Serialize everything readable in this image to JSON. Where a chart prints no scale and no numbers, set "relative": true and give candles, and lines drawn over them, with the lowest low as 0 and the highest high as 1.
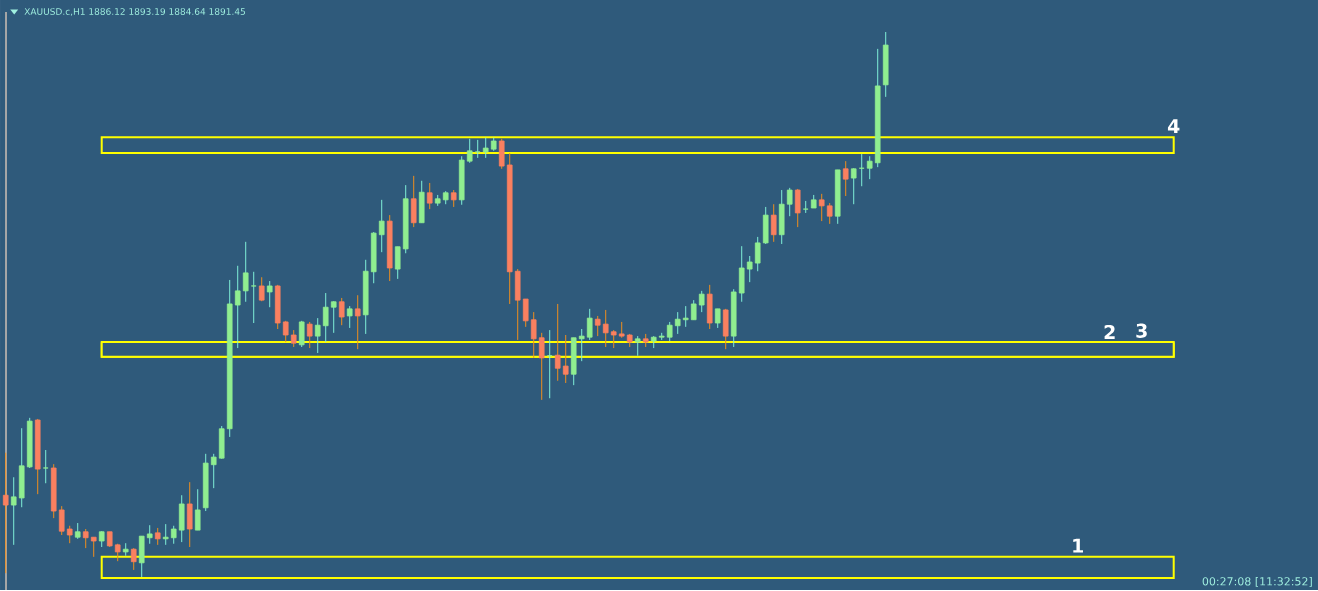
{
  "chart_data": {
    "type": "candlestick",
    "relative": true,
    "title": "XAUUSD.c,H1  1886.12 1893.19 1884.64 1891.45",
    "categories": [
      null,
      null,
      null,
      null,
      null,
      null,
      null,
      null,
      null,
      null,
      null,
      null,
      null,
      null,
      null,
      null,
      null,
      null,
      null,
      null,
      null,
      null,
      null,
      null,
      null,
      null,
      null,
      null,
      null,
      null,
      null,
      null,
      null,
      null,
      null,
      null,
      null,
      null,
      null,
      null,
      null,
      null,
      null,
      null,
      null,
      null,
      null,
      null,
      null,
      null,
      null,
      null,
      null,
      null,
      null,
      null,
      null,
      null,
      null,
      null,
      null,
      null,
      null,
      null,
      null,
      null,
      null,
      null,
      null,
      null,
      null,
      null,
      null,
      null,
      null,
      null,
      null,
      null,
      null,
      null,
      null,
      null,
      null,
      null,
      null,
      null,
      null,
      null,
      null,
      null,
      null,
      null,
      null,
      null,
      null,
      null,
      null,
      null,
      null,
      null,
      null,
      null,
      null,
      null,
      null,
      null,
      null,
      null,
      null,
      null,
      null
    ],
    "ohlc": [
      [
        0.15,
        0.228,
        0.007,
        0.132
      ],
      [
        0.132,
        0.183,
        0.059,
        0.147
      ],
      [
        0.145,
        0.273,
        0.128,
        0.204
      ],
      [
        0.202,
        0.292,
        0.2,
        0.286
      ],
      [
        0.288,
        0.29,
        0.152,
        0.198
      ],
      [
        0.2,
        0.233,
        0.172,
        0.2
      ],
      [
        0.2,
        0.207,
        0.108,
        0.121
      ],
      [
        0.123,
        0.13,
        0.077,
        0.084
      ],
      [
        0.088,
        0.094,
        0.062,
        0.077
      ],
      [
        0.073,
        0.099,
        0.07,
        0.083
      ],
      [
        0.083,
        0.088,
        0.053,
        0.072
      ],
      [
        0.073,
        0.073,
        0.037,
        0.066
      ],
      [
        0.066,
        0.084,
        0.055,
        0.083
      ],
      [
        0.083,
        0.083,
        0.055,
        0.057
      ],
      [
        0.059,
        0.061,
        0.029,
        0.046
      ],
      [
        0.046,
        0.062,
        0.039,
        0.051
      ],
      [
        0.051,
        0.053,
        0.013,
        0.028
      ],
      [
        0.026,
        0.075,
        0,
        0.075
      ],
      [
        0.072,
        0.095,
        0.061,
        0.079
      ],
      [
        0.081,
        0.09,
        0.059,
        0.07
      ],
      [
        0.07,
        0.097,
        0.059,
        0.073
      ],
      [
        0.072,
        0.094,
        0.061,
        0.088
      ],
      [
        0.086,
        0.15,
        0.064,
        0.134
      ],
      [
        0.134,
        0.174,
        0.055,
        0.088
      ],
      [
        0.086,
        0.161,
        0.086,
        0.123
      ],
      [
        0.127,
        0.226,
        0.121,
        0.209
      ],
      [
        0.206,
        0.226,
        0.163,
        0.22
      ],
      [
        0.218,
        0.277,
        0.217,
        0.272
      ],
      [
        0.272,
        0.545,
        0.257,
        0.501
      ],
      [
        0.499,
        0.571,
        0.42,
        0.525
      ],
      [
        0.525,
        0.615,
        0.505,
        0.558
      ],
      [
        0.534,
        0.56,
        0.466,
        0.534
      ],
      [
        0.534,
        0.55,
        0.506,
        0.508
      ],
      [
        0.523,
        0.543,
        0.495,
        0.534
      ],
      [
        0.534,
        0.536,
        0.455,
        0.466
      ],
      [
        0.468,
        0.47,
        0.431,
        0.444
      ],
      [
        0.444,
        0.453,
        0.422,
        0.429
      ],
      [
        0.426,
        0.47,
        0.422,
        0.468
      ],
      [
        0.464,
        0.468,
        0.42,
        0.442
      ],
      [
        0.442,
        0.475,
        0.411,
        0.462
      ],
      [
        0.461,
        0.521,
        0.431,
        0.495
      ],
      [
        0.495,
        0.506,
        0.448,
        0.505
      ],
      [
        0.505,
        0.512,
        0.462,
        0.477
      ],
      [
        0.479,
        0.497,
        0.457,
        0.492
      ],
      [
        0.492,
        0.517,
        0.418,
        0.479
      ],
      [
        0.481,
        0.582,
        0.446,
        0.561
      ],
      [
        0.56,
        0.633,
        0.539,
        0.631
      ],
      [
        0.628,
        0.692,
        0.596,
        0.653
      ],
      [
        0.653,
        0.664,
        0.543,
        0.567
      ],
      [
        0.565,
        0.606,
        0.547,
        0.606
      ],
      [
        0.602,
        0.719,
        0.594,
        0.694
      ],
      [
        0.694,
        0.736,
        0.642,
        0.65
      ],
      [
        0.65,
        0.727,
        0.65,
        0.706
      ],
      [
        0.705,
        0.723,
        0.675,
        0.686
      ],
      [
        0.686,
        0.701,
        0.681,
        0.694
      ],
      [
        0.692,
        0.708,
        0.684,
        0.705
      ],
      [
        0.705,
        0.71,
        0.679,
        0.692
      ],
      [
        0.692,
        0.772,
        0.683,
        0.765
      ],
      [
        0.763,
        0.804,
        0.76,
        0.782
      ],
      [
        0.78,
        0.802,
        0.769,
        0.78
      ],
      [
        0.78,
        0.806,
        0.769,
        0.787
      ],
      [
        0.785,
        0.806,
        0.782,
        0.8
      ],
      [
        0.8,
        0.804,
        0.749,
        0.754
      ],
      [
        0.756,
        0.778,
        0.501,
        0.56
      ],
      [
        0.561,
        0.565,
        0.435,
        0.508
      ],
      [
        0.51,
        0.51,
        0.459,
        0.47
      ],
      [
        0.472,
        0.486,
        0.402,
        0.437
      ],
      [
        0.439,
        0.448,
        0.325,
        0.402
      ],
      [
        0.406,
        0.453,
        0.328,
        0.406
      ],
      [
        0.407,
        0.501,
        0.36,
        0.383
      ],
      [
        0.387,
        0.444,
        0.356,
        0.372
      ],
      [
        0.372,
        0.439,
        0.352,
        0.439
      ],
      [
        0.437,
        0.455,
        0.396,
        0.442
      ],
      [
        0.44,
        0.492,
        0.435,
        0.475
      ],
      [
        0.473,
        0.479,
        0.442,
        0.462
      ],
      [
        0.464,
        0.49,
        0.422,
        0.448
      ],
      [
        0.45,
        0.453,
        0.42,
        0.444
      ],
      [
        0.446,
        0.468,
        0.439,
        0.442
      ],
      [
        0.444,
        0.446,
        0.422,
        0.431
      ],
      [
        0.431,
        0.442,
        0.406,
        0.437
      ],
      [
        0.437,
        0.446,
        0.422,
        0.431
      ],
      [
        0.433,
        0.442,
        0.42,
        0.44
      ],
      [
        0.44,
        0.448,
        0.435,
        0.442
      ],
      [
        0.44,
        0.468,
        0.433,
        0.462
      ],
      [
        0.461,
        0.486,
        0.446,
        0.473
      ],
      [
        0.472,
        0.497,
        0.459,
        0.475
      ],
      [
        0.472,
        0.508,
        0.472,
        0.501
      ],
      [
        0.499,
        0.525,
        0.486,
        0.519
      ],
      [
        0.519,
        0.536,
        0.455,
        0.466
      ],
      [
        0.466,
        0.492,
        0.457,
        0.492
      ],
      [
        0.49,
        0.492,
        0.418,
        0.442
      ],
      [
        0.442,
        0.528,
        0.422,
        0.523
      ],
      [
        0.521,
        0.607,
        0.505,
        0.567
      ],
      [
        0.565,
        0.589,
        0.541,
        0.578
      ],
      [
        0.576,
        0.624,
        0.561,
        0.613
      ],
      [
        0.613,
        0.679,
        0.611,
        0.664
      ],
      [
        0.664,
        0.684,
        0.615,
        0.628
      ],
      [
        0.628,
        0.71,
        0.611,
        0.684
      ],
      [
        0.684,
        0.714,
        0.662,
        0.71
      ],
      [
        0.71,
        0.712,
        0.642,
        0.668
      ],
      [
        0.675,
        0.69,
        0.668,
        0.675
      ],
      [
        0.677,
        0.701,
        0.677,
        0.692
      ],
      [
        0.692,
        0.703,
        0.653,
        0.681
      ],
      [
        0.681,
        0.686,
        0.648,
        0.662
      ],
      [
        0.662,
        0.747,
        0.648,
        0.747
      ],
      [
        0.749,
        0.763,
        0.699,
        0.73
      ],
      [
        0.732,
        0.75,
        0.684,
        0.749
      ],
      [
        0.75,
        0.776,
        0.717,
        0.75
      ],
      [
        0.75,
        0.772,
        0.73,
        0.763
      ],
      [
        0.76,
        0.969,
        0.752,
        0.901
      ],
      [
        0.903,
        1,
        0.881,
        0.976
      ]
    ],
    "bands": [
      {
        "axis": "y",
        "from": -0.002,
        "to": 0.037,
        "label": "1",
        "color": "#ffff00"
      },
      {
        "axis": "y",
        "from": 0.404,
        "to": 0.429,
        "label": "2",
        "color": "#ffff00"
      },
      {
        "axis": "y",
        "from": 0.404,
        "to": 0.431,
        "label": "3",
        "color": "#ffff00"
      },
      {
        "axis": "y",
        "from": 0.778,
        "to": 0.807,
        "label": "4",
        "color": "#ffff00"
      }
    ],
    "annotations": [
      "00:27:08 [11:32:52]"
    ]
  }
}
